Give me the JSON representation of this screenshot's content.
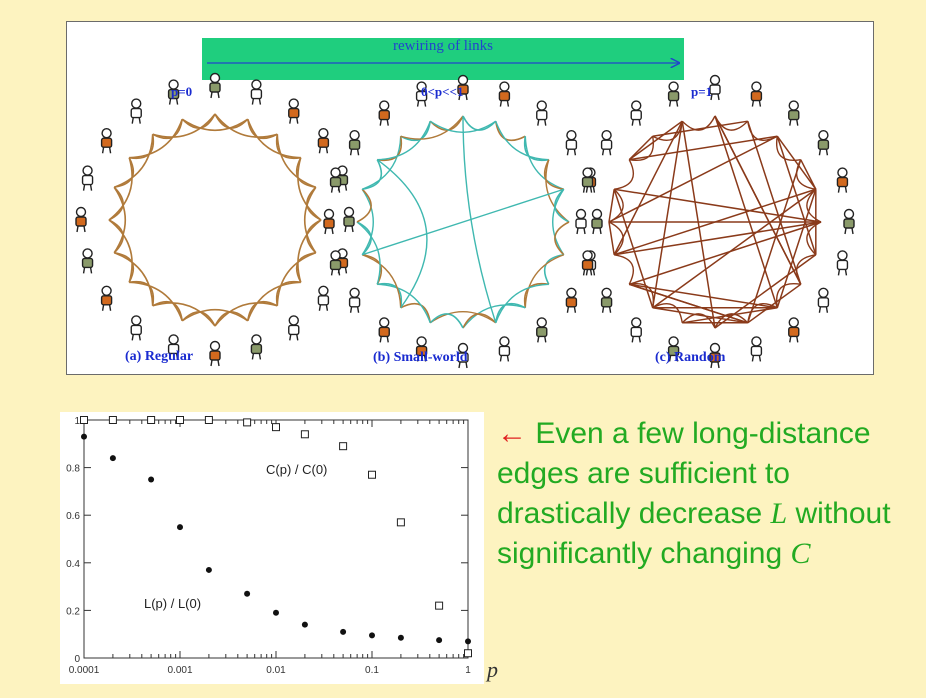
{
  "diagram": {
    "banner_label": "rewiring of links",
    "panels": [
      {
        "p_label": "p=0",
        "caption": "(a) Regular",
        "type": "regular",
        "edge_color": "#b07a3a"
      },
      {
        "p_label": "0<p<<1",
        "caption": "(b) Small-world",
        "type": "small-world",
        "edge_color": "#b07a3a",
        "edge_color_alt": "#3fb8b0"
      },
      {
        "p_label": "p=1",
        "caption": "(c) Random",
        "type": "random",
        "edge_color": "#8a3a1a"
      }
    ],
    "colors": {
      "banner": "#1fce7e",
      "label_blue": "#1a2bd0",
      "figure_orange": "#d2691e",
      "figure_green": "#8a9a6a"
    }
  },
  "chart_data": {
    "type": "scatter",
    "x_scale": "log",
    "xlim": [
      0.0001,
      1
    ],
    "ylim": [
      0,
      1
    ],
    "x_ticks": [
      "0.0001",
      "0.001",
      "0.01",
      "0.1",
      "1"
    ],
    "y_ticks": [
      "0",
      "0.2",
      "0.4",
      "0.6",
      "0.8",
      "1"
    ],
    "xlabel": "p",
    "series": [
      {
        "name": "C(p) / C(0)",
        "marker": "open-square",
        "x": [
          0.0001,
          0.0002,
          0.0005,
          0.001,
          0.002,
          0.005,
          0.01,
          0.02,
          0.05,
          0.1,
          0.2,
          0.5,
          1
        ],
        "y": [
          1.0,
          1.0,
          1.0,
          1.0,
          1.0,
          0.99,
          0.97,
          0.94,
          0.89,
          0.77,
          0.57,
          0.22,
          0.02
        ]
      },
      {
        "name": "L(p) / L(0)",
        "marker": "filled-circle",
        "x": [
          0.0001,
          0.0002,
          0.0005,
          0.001,
          0.002,
          0.005,
          0.01,
          0.02,
          0.05,
          0.1,
          0.2,
          0.5,
          1
        ],
        "y": [
          0.93,
          0.84,
          0.75,
          0.55,
          0.37,
          0.27,
          0.19,
          0.14,
          0.11,
          0.095,
          0.085,
          0.075,
          0.07
        ]
      }
    ],
    "annotations": [
      {
        "text": "C(p) / C(0)",
        "series": 0
      },
      {
        "text": "L(p) / L(0)",
        "series": 1
      }
    ]
  },
  "note": {
    "arrow": "←",
    "text_before_l": " Even a few long-distance edges are sufficient to drastically decrease ",
    "var_l": "L",
    "text_before_c": " without significantly changing ",
    "var_c": "C"
  }
}
